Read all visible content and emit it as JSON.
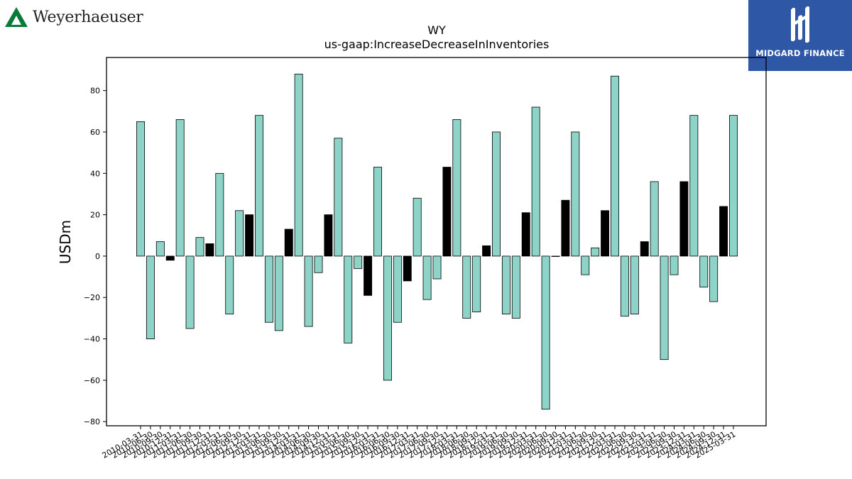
{
  "branding": {
    "left_logo_text": "Weyerhaeuser",
    "right_logo_text": "MIDGARD FINANCE",
    "left_logo_color": "#0a7a3b",
    "right_logo_bg": "#2e57a5"
  },
  "chart_data": {
    "type": "bar",
    "title": "WY",
    "subtitle": "us-gaap:IncreaseDecreaseInInventories",
    "ylabel": "USDm",
    "xlabel": "",
    "ylim": [
      -82,
      96
    ],
    "yticks": [
      -80,
      -60,
      -40,
      -20,
      0,
      20,
      40,
      60,
      80
    ],
    "grid": false,
    "colors": {
      "quarter": "#8dd3c7",
      "year_end": "#000000",
      "edge": "#000000"
    },
    "categories": [
      "2010-03-31",
      "2010-06-30",
      "2010-09-30",
      "2010-12-31",
      "2011-03-31",
      "2011-06-30",
      "2011-09-30",
      "2011-12-31",
      "2012-03-31",
      "2012-06-30",
      "2012-09-30",
      "2012-12-31",
      "2013-03-31",
      "2013-06-30",
      "2013-09-30",
      "2013-12-31",
      "2014-03-31",
      "2014-06-30",
      "2014-09-30",
      "2014-12-31",
      "2015-03-31",
      "2015-06-30",
      "2015-09-30",
      "2015-12-31",
      "2016-03-31",
      "2016-06-30",
      "2016-09-30",
      "2016-12-31",
      "2017-03-31",
      "2017-06-30",
      "2017-09-30",
      "2017-12-31",
      "2018-03-31",
      "2018-06-30",
      "2018-09-30",
      "2018-12-31",
      "2019-03-31",
      "2019-06-30",
      "2019-09-30",
      "2019-12-31",
      "2020-03-31",
      "2020-06-30",
      "2020-09-30",
      "2020-12-31",
      "2021-03-31",
      "2021-06-30",
      "2021-09-30",
      "2021-12-31",
      "2022-03-31",
      "2022-06-30",
      "2022-09-30",
      "2022-12-31",
      "2023-03-31",
      "2023-06-30",
      "2023-09-30",
      "2023-12-31",
      "2024-03-31",
      "2024-06-30",
      "2024-09-30",
      "2024-12-31",
      "2025-03-31"
    ],
    "values": [
      65,
      -40,
      7,
      -2,
      66,
      -35,
      9,
      6,
      40,
      -28,
      22,
      20,
      68,
      -32,
      -36,
      13,
      88,
      -34,
      -8,
      20,
      57,
      -42,
      -6,
      -19,
      43,
      -60,
      -32,
      -12,
      28,
      -21,
      -11,
      43,
      66,
      -30,
      -27,
      5,
      60,
      -28,
      -30,
      21,
      72,
      -74,
      0,
      27,
      60,
      -9,
      4,
      22,
      87,
      -29,
      -28,
      7,
      36,
      -50,
      -9,
      36,
      68,
      -15,
      -22,
      24,
      68
    ],
    "year_end_flags": [
      0,
      0,
      0,
      1,
      0,
      0,
      0,
      1,
      0,
      0,
      0,
      1,
      0,
      0,
      0,
      1,
      0,
      0,
      0,
      1,
      0,
      0,
      0,
      1,
      0,
      0,
      0,
      1,
      0,
      0,
      0,
      1,
      0,
      0,
      0,
      1,
      0,
      0,
      0,
      1,
      0,
      0,
      0,
      1,
      0,
      0,
      0,
      1,
      0,
      0,
      0,
      1,
      0,
      0,
      0,
      1,
      0,
      0,
      0,
      1,
      0
    ]
  }
}
